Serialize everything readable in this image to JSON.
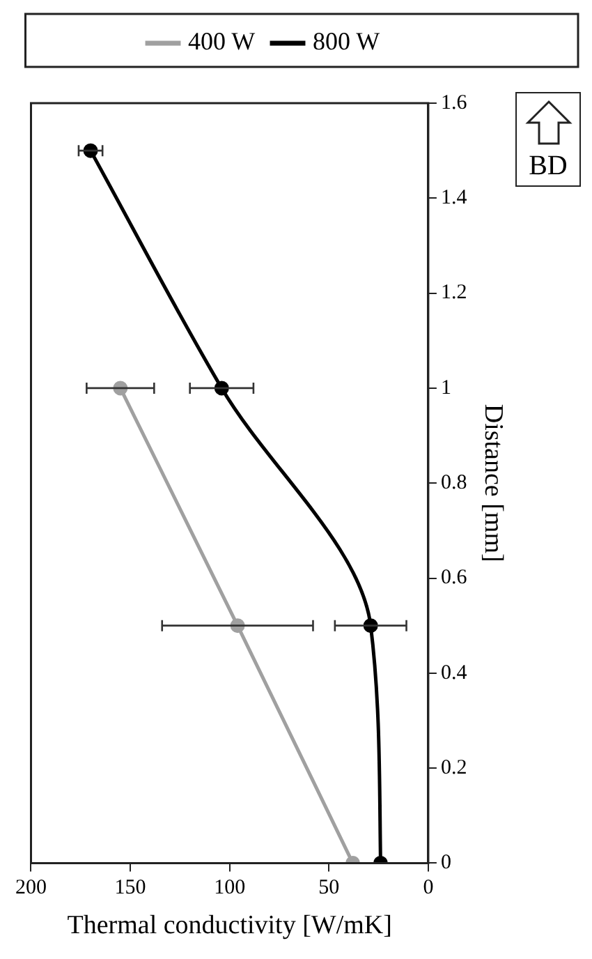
{
  "chart_data": {
    "type": "line",
    "xlabel": "Thermal conductivity [W/mK]",
    "ylabel": "Distance [mm]",
    "xlim": [
      200,
      0
    ],
    "xticks": [
      200,
      150,
      100,
      50,
      0
    ],
    "ylim": [
      0,
      1.6
    ],
    "yticks": [
      0,
      0.2,
      0.4,
      0.6,
      0.8,
      1,
      1.2,
      1.4,
      1.6
    ],
    "legend": "top",
    "grid": false,
    "marker": "circle",
    "line_style": "solid",
    "annotations": [
      "BD"
    ],
    "series": [
      {
        "name": "400 W",
        "color": "#a0a0a0",
        "x": [
          38,
          96,
          155
        ],
        "values": [
          0,
          0.5,
          1
        ],
        "xerrors": [
          null,
          38,
          17
        ]
      },
      {
        "name": "800 W",
        "color": "#000000",
        "x": [
          24,
          29,
          104,
          170
        ],
        "values": [
          0,
          0.5,
          1,
          1.5
        ],
        "xerrors": [
          null,
          18,
          16,
          6
        ]
      }
    ]
  }
}
